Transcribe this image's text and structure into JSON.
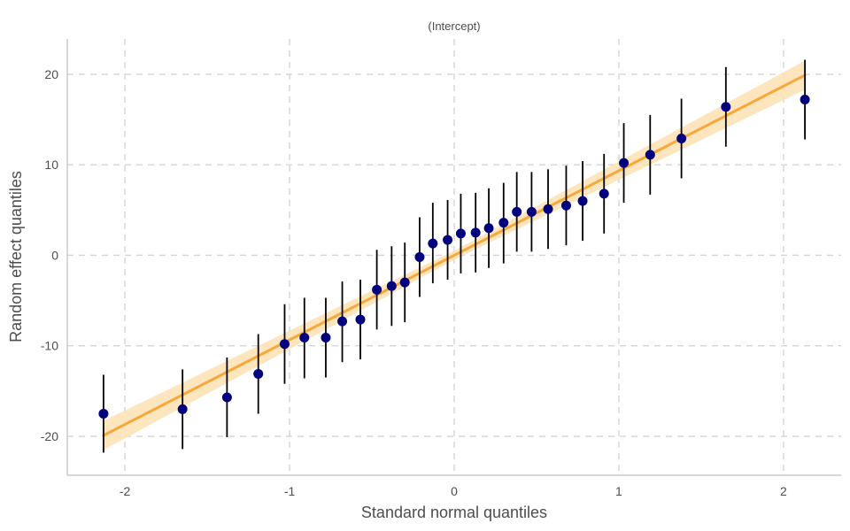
{
  "chart_data": {
    "type": "scatter",
    "title": "(Intercept)",
    "xlabel": "Standard normal quantiles",
    "ylabel": "Random effect quantiles",
    "xlim": [
      -2.35,
      2.35
    ],
    "ylim": [
      -24.3,
      23.9
    ],
    "xticks": [
      -2,
      -1,
      0,
      1,
      2
    ],
    "xtick_labels": [
      "-2",
      "-1",
      "0",
      "1",
      "2"
    ],
    "yticks": [
      -20,
      -10,
      0,
      10,
      20
    ],
    "ytick_labels": [
      "-20",
      "-10",
      "0",
      "10",
      "20"
    ],
    "grid": true,
    "colors": {
      "points": "#00007f",
      "errorbars": "#000000",
      "fit_line": "#f8a83a",
      "fit_band": "#fde0b2"
    },
    "fit_line": {
      "x": [
        -2.13,
        2.13
      ],
      "y": [
        -19.9,
        19.9
      ]
    },
    "fit_band": {
      "x": [
        -2.13,
        0,
        2.13
      ],
      "half_width": [
        1.6,
        0.5,
        1.6
      ]
    },
    "points": [
      {
        "x": -2.13,
        "y": -17.5,
        "lo": -21.8,
        "hi": -13.2
      },
      {
        "x": -1.65,
        "y": -17.0,
        "lo": -21.4,
        "hi": -12.6
      },
      {
        "x": -1.38,
        "y": -15.7,
        "lo": -20.1,
        "hi": -11.3
      },
      {
        "x": -1.19,
        "y": -13.1,
        "lo": -17.5,
        "hi": -8.7
      },
      {
        "x": -1.03,
        "y": -9.8,
        "lo": -14.2,
        "hi": -5.4
      },
      {
        "x": -0.91,
        "y": -9.1,
        "lo": -13.6,
        "hi": -4.7
      },
      {
        "x": -0.78,
        "y": -9.1,
        "lo": -13.5,
        "hi": -4.7
      },
      {
        "x": -0.68,
        "y": -7.3,
        "lo": -11.8,
        "hi": -2.9
      },
      {
        "x": -0.57,
        "y": -7.1,
        "lo": -11.5,
        "hi": -2.7
      },
      {
        "x": -0.47,
        "y": -3.8,
        "lo": -8.2,
        "hi": 0.6
      },
      {
        "x": -0.38,
        "y": -3.4,
        "lo": -7.8,
        "hi": 1.0
      },
      {
        "x": -0.3,
        "y": -3.0,
        "lo": -7.4,
        "hi": 1.4
      },
      {
        "x": -0.21,
        "y": -0.2,
        "lo": -4.6,
        "hi": 4.2
      },
      {
        "x": -0.13,
        "y": 1.3,
        "lo": -3.1,
        "hi": 5.8
      },
      {
        "x": -0.04,
        "y": 1.7,
        "lo": -2.7,
        "hi": 6.1
      },
      {
        "x": 0.04,
        "y": 2.4,
        "lo": -2.0,
        "hi": 6.8
      },
      {
        "x": 0.13,
        "y": 2.5,
        "lo": -1.9,
        "hi": 6.9
      },
      {
        "x": 0.21,
        "y": 3.0,
        "lo": -1.4,
        "hi": 7.4
      },
      {
        "x": 0.3,
        "y": 3.6,
        "lo": -0.9,
        "hi": 8.0
      },
      {
        "x": 0.38,
        "y": 4.8,
        "lo": 0.4,
        "hi": 9.2
      },
      {
        "x": 0.47,
        "y": 4.8,
        "lo": 0.4,
        "hi": 9.2
      },
      {
        "x": 0.57,
        "y": 5.1,
        "lo": 0.7,
        "hi": 9.5
      },
      {
        "x": 0.68,
        "y": 5.5,
        "lo": 1.1,
        "hi": 9.9
      },
      {
        "x": 0.78,
        "y": 6.0,
        "lo": 1.6,
        "hi": 10.4
      },
      {
        "x": 0.91,
        "y": 6.8,
        "lo": 2.4,
        "hi": 11.2
      },
      {
        "x": 1.03,
        "y": 10.2,
        "lo": 5.8,
        "hi": 14.6
      },
      {
        "x": 1.19,
        "y": 11.1,
        "lo": 6.7,
        "hi": 15.5
      },
      {
        "x": 1.38,
        "y": 12.9,
        "lo": 8.5,
        "hi": 17.3
      },
      {
        "x": 1.65,
        "y": 16.4,
        "lo": 12.0,
        "hi": 20.8
      },
      {
        "x": 2.13,
        "y": 17.2,
        "lo": 12.8,
        "hi": 21.6
      }
    ]
  }
}
